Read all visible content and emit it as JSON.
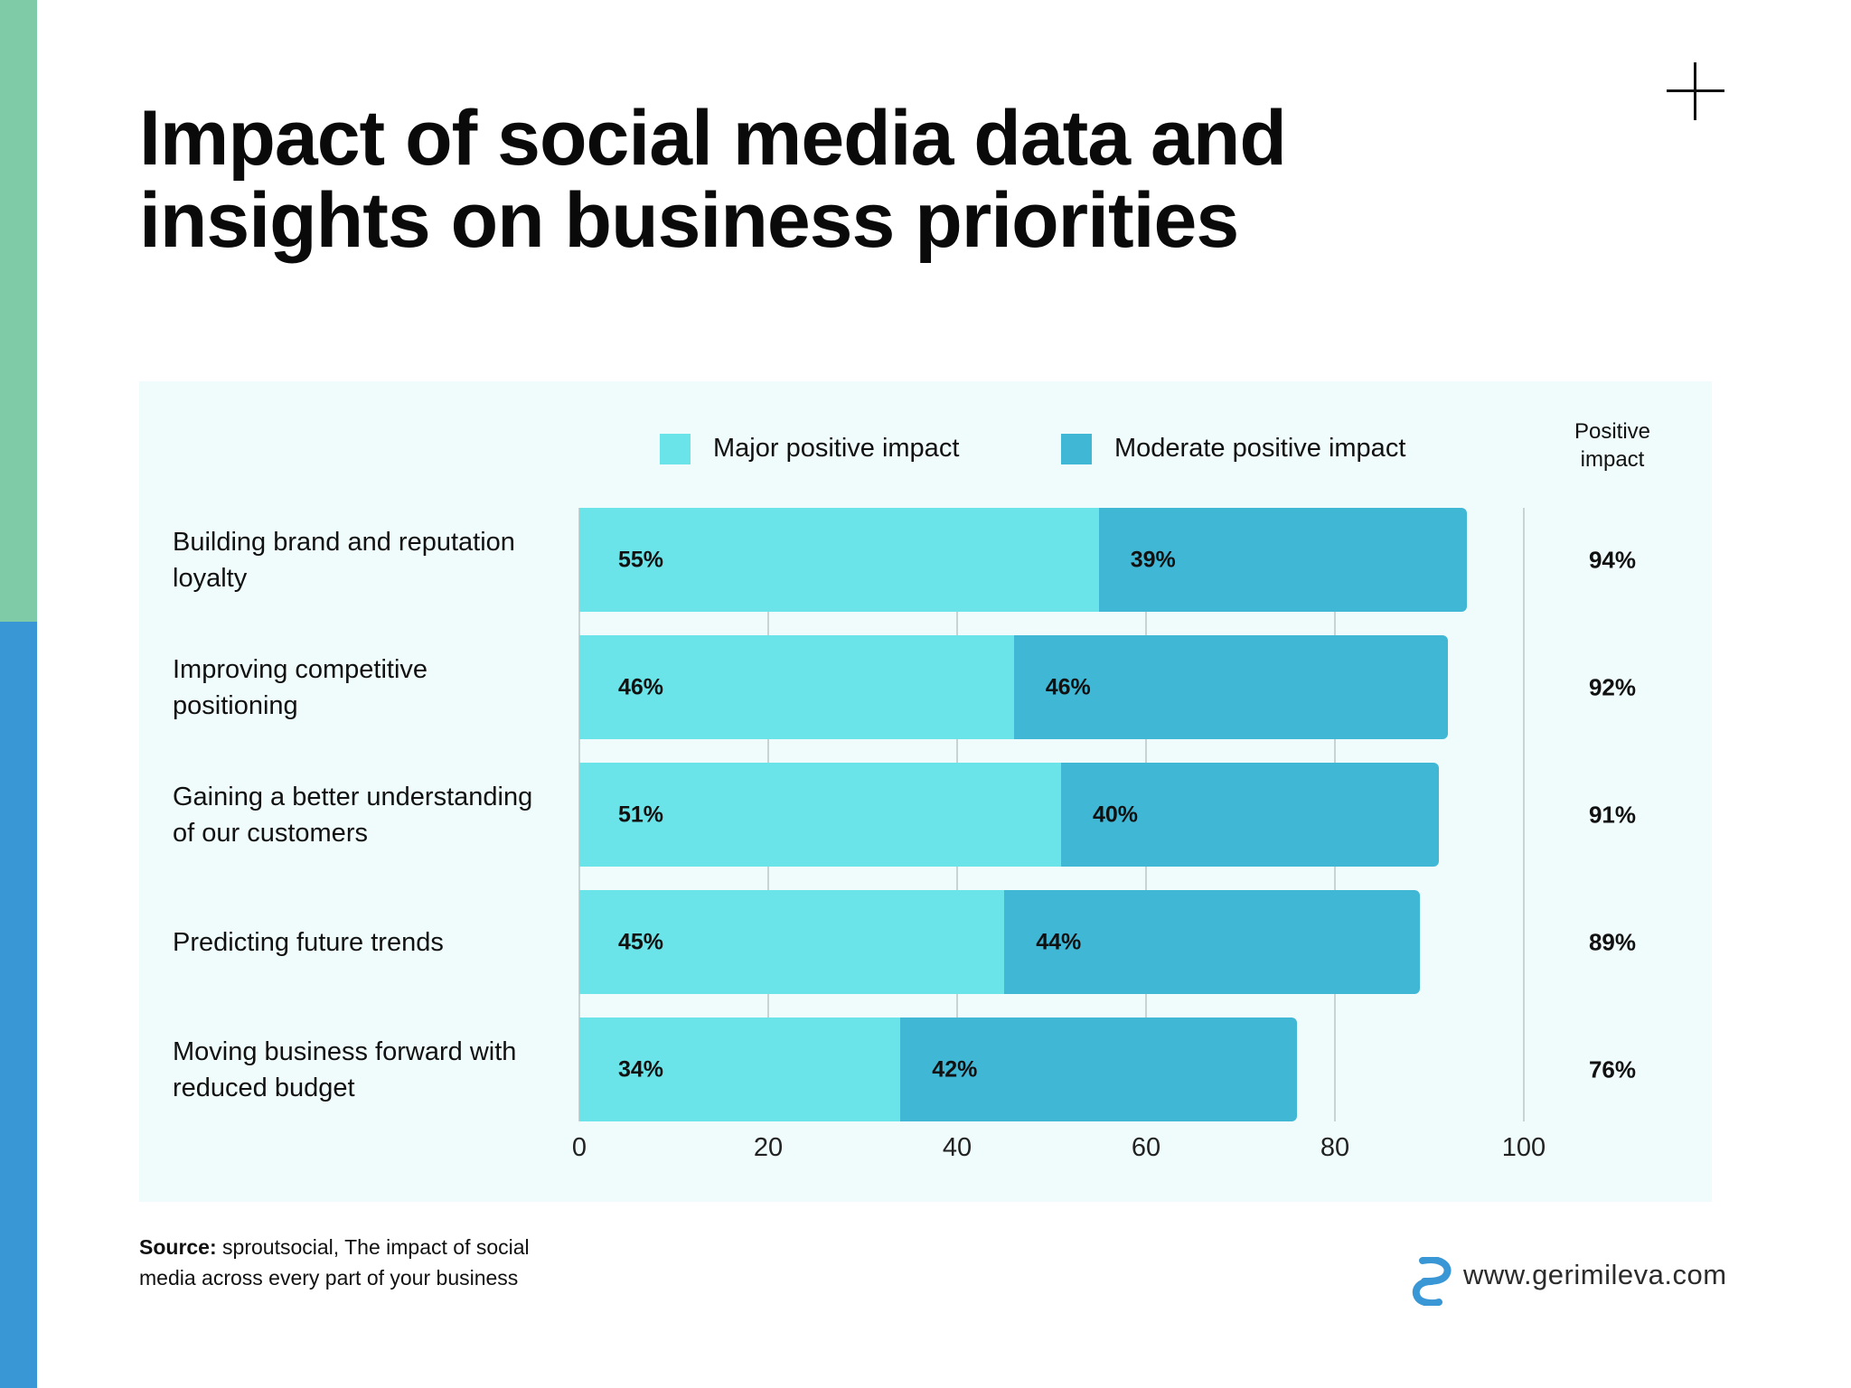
{
  "title": "Impact of social media data and insights on business priorities",
  "colors": {
    "major": "#6ae4e8",
    "moderate": "#41b7d6",
    "panel": "#effcfb",
    "stripe_green": "#7fcba8",
    "stripe_blue": "#3a97d5"
  },
  "chart_data": {
    "type": "bar",
    "orientation": "horizontal",
    "stacked": true,
    "categories": [
      "Building brand and reputation loyalty",
      "Improving competitive positioning",
      "Gaining a better understanding of our customers",
      "Predicting future trends",
      "Moving business forward with reduced budget"
    ],
    "series": [
      {
        "name": "Major positive impact",
        "values": [
          55,
          46,
          51,
          45,
          34
        ],
        "labels": [
          "55%",
          "46%",
          "51%",
          "45%",
          "34%"
        ]
      },
      {
        "name": "Moderate positive impact",
        "values": [
          39,
          46,
          40,
          44,
          42
        ],
        "labels": [
          "39%",
          "46%",
          "40%",
          "44%",
          "42%"
        ]
      }
    ],
    "totals_header": "Positive impact",
    "totals": [
      "94%",
      "92%",
      "91%",
      "89%",
      "76%"
    ],
    "xlim": [
      0,
      100
    ],
    "xticks": [
      "0",
      "20",
      "40",
      "60",
      "80",
      "100"
    ],
    "grid": true,
    "legend": "top"
  },
  "source_label": "Source:",
  "source_text": " sproutsocial, The impact of social media across every part of your business",
  "site": "www.gerimileva.com",
  "icons": {
    "corner": "plus-icon",
    "logo": "gerimileva-logo"
  }
}
